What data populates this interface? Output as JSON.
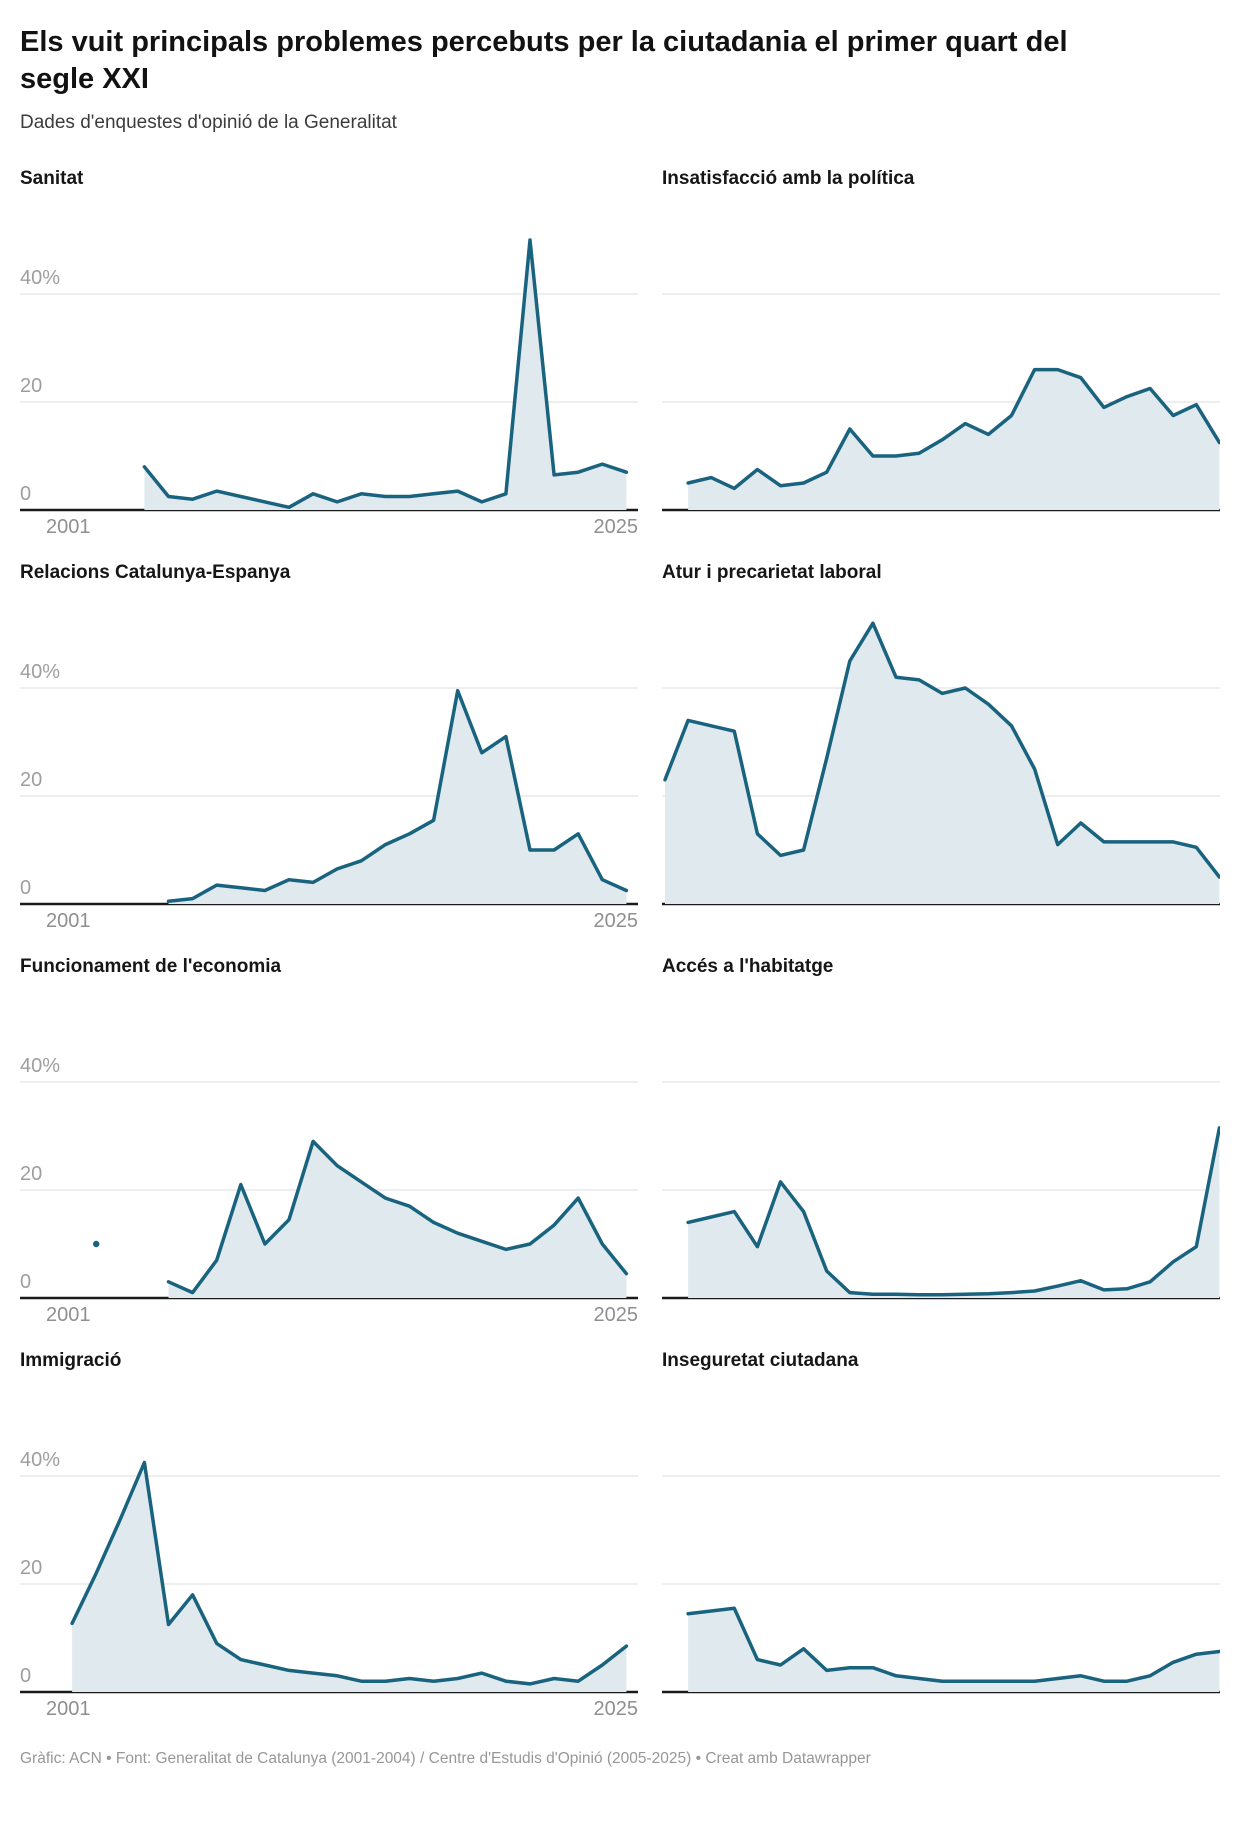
{
  "header": {
    "title": "Els vuit principals problemes percebuts per la ciutadania el primer quart del segle XXI",
    "subtitle": "Dades d'enquestes d'opinió de la Generalitat"
  },
  "axis": {
    "y_ticks": [
      "40%",
      "20",
      "0"
    ],
    "y_tick_values": [
      40,
      20,
      0
    ],
    "x_start": "2001",
    "x_end": "2025",
    "year_min": 2001,
    "year_max": 2025,
    "ylim": [
      0,
      55
    ],
    "grid": "horizontal-only",
    "labels_only_on_left_column": true
  },
  "style": {
    "line_color": "#19637f",
    "area_color": "#dfe9ee",
    "grid_color": "#dcdcdc",
    "axis_color": "#1a1a1a",
    "y_label_color": "#9e9e9e",
    "x_label_color": "#8f8f8f"
  },
  "chart_data": [
    {
      "type": "area",
      "title": "Sanitat",
      "column": "left",
      "unit": "%",
      "years": [
        2005,
        2006,
        2007,
        2008,
        2009,
        2010,
        2011,
        2012,
        2013,
        2014,
        2015,
        2016,
        2017,
        2018,
        2019,
        2020,
        2021,
        2022,
        2023,
        2024,
        2025
      ],
      "values": [
        8,
        2.5,
        2,
        3.5,
        2.5,
        1.5,
        0.5,
        3,
        1.5,
        3,
        2.5,
        2.5,
        3,
        3.5,
        1.5,
        3,
        50,
        6.5,
        7,
        8.5,
        7
      ]
    },
    {
      "type": "area",
      "title": "Insatisfacció amb la política",
      "column": "right",
      "unit": "%",
      "years": [
        2002,
        2003,
        2004,
        2005,
        2006,
        2007,
        2008,
        2009,
        2010,
        2011,
        2012,
        2013,
        2014,
        2015,
        2016,
        2017,
        2018,
        2019,
        2020,
        2021,
        2022,
        2023,
        2024,
        2025
      ],
      "values": [
        5,
        6,
        4,
        7.5,
        4.5,
        5,
        7,
        15,
        10,
        10,
        10.5,
        13,
        16,
        14,
        17.5,
        26,
        26,
        24.5,
        19,
        21,
        22.5,
        17.5,
        19.5,
        12.5
      ]
    },
    {
      "type": "area",
      "title": "Relacions Catalunya-Espanya",
      "column": "left",
      "unit": "%",
      "years": [
        2006,
        2007,
        2008,
        2009,
        2010,
        2011,
        2012,
        2013,
        2014,
        2015,
        2016,
        2017,
        2018,
        2019,
        2020,
        2021,
        2022,
        2023,
        2024,
        2025
      ],
      "values": [
        0.5,
        1,
        3.5,
        3,
        2.5,
        4.5,
        4,
        6.5,
        8,
        11,
        13,
        15.5,
        39.5,
        28,
        31,
        10,
        10,
        13,
        4.5,
        2.5
      ]
    },
    {
      "type": "area",
      "title": "Atur i precarietat laboral",
      "column": "right",
      "unit": "%",
      "years": [
        2001,
        2002,
        2003,
        2004,
        2005,
        2006,
        2007,
        2008,
        2009,
        2010,
        2011,
        2012,
        2013,
        2014,
        2015,
        2016,
        2017,
        2018,
        2019,
        2020,
        2021,
        2022,
        2023,
        2024,
        2025
      ],
      "values": [
        23,
        34,
        33,
        32,
        13,
        9,
        10,
        27,
        45,
        52,
        42,
        41.5,
        39,
        40,
        37,
        33,
        25,
        11,
        15,
        11.5,
        11.5,
        11.5,
        11.5,
        10.5,
        5
      ]
    },
    {
      "type": "area",
      "title": "Funcionament de l'economia",
      "column": "left",
      "unit": "%",
      "isolated_points": {
        "years": [
          2003
        ],
        "values": [
          10
        ]
      },
      "years": [
        2006,
        2007,
        2008,
        2009,
        2010,
        2011,
        2012,
        2013,
        2014,
        2015,
        2016,
        2017,
        2018,
        2019,
        2020,
        2021,
        2022,
        2023,
        2024,
        2025
      ],
      "values": [
        3,
        1,
        7,
        21,
        10,
        14.5,
        29,
        24.5,
        21.5,
        18.5,
        17,
        14,
        12,
        10.5,
        9,
        10,
        13.5,
        18.5,
        10,
        4.5
      ]
    },
    {
      "type": "area",
      "title": "Accés a l'habitatge",
      "column": "right",
      "unit": "%",
      "years": [
        2002,
        2003,
        2004,
        2005,
        2006,
        2007,
        2008,
        2009,
        2010,
        2011,
        2012,
        2013,
        2014,
        2015,
        2016,
        2017,
        2018,
        2019,
        2020,
        2021,
        2022,
        2023,
        2024,
        2025
      ],
      "values": [
        14,
        15,
        16,
        9.5,
        21.5,
        16,
        5,
        1,
        0.7,
        0.7,
        0.6,
        0.6,
        0.7,
        0.8,
        1,
        1.3,
        2.2,
        3.2,
        1.5,
        1.7,
        3,
        6.7,
        9.5,
        31.5
      ]
    },
    {
      "type": "area",
      "title": "Immigració",
      "column": "left",
      "unit": "%",
      "years": [
        2002,
        2003,
        2004,
        2005,
        2006,
        2007,
        2008,
        2009,
        2010,
        2011,
        2012,
        2013,
        2014,
        2015,
        2016,
        2017,
        2018,
        2019,
        2020,
        2021,
        2022,
        2023,
        2024,
        2025
      ],
      "values": [
        12.7,
        22,
        32,
        42.5,
        12.5,
        18,
        9,
        6,
        5,
        4,
        3.5,
        3,
        2,
        2,
        2.5,
        2,
        2.5,
        3.5,
        2,
        1.5,
        2.5,
        2,
        5,
        8.5
      ]
    },
    {
      "type": "area",
      "title": "Inseguretat ciutadana",
      "column": "right",
      "unit": "%",
      "years": [
        2002,
        2003,
        2004,
        2005,
        2006,
        2007,
        2008,
        2009,
        2010,
        2011,
        2012,
        2013,
        2014,
        2015,
        2016,
        2017,
        2018,
        2019,
        2020,
        2021,
        2022,
        2023,
        2024,
        2025
      ],
      "values": [
        14.5,
        15,
        15.5,
        6,
        5,
        8,
        4,
        4.5,
        4.5,
        3,
        2.5,
        2,
        2,
        2,
        2,
        2,
        2.5,
        3,
        2,
        2,
        3,
        5.5,
        7,
        7.5
      ]
    }
  ],
  "footer": {
    "credit": "Gràfic: ACN • Font: Generalitat de Catalunya (2001-2004) / Centre d'Estudis d'Opinió (2005-2025) • Creat amb Datawrapper"
  }
}
